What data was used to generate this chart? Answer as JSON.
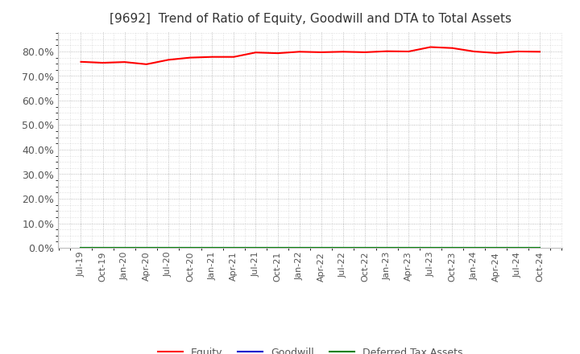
{
  "title": "[9692]  Trend of Ratio of Equity, Goodwill and DTA to Total Assets",
  "title_fontsize": 11,
  "ylim": [
    0,
    0.88
  ],
  "yticks": [
    0.0,
    0.1,
    0.2,
    0.3,
    0.4,
    0.5,
    0.6,
    0.7,
    0.8
  ],
  "ytick_labels": [
    "0.0%",
    "10.0%",
    "20.0%",
    "30.0%",
    "40.0%",
    "50.0%",
    "60.0%",
    "70.0%",
    "80.0%"
  ],
  "x_labels": [
    "Jul-19",
    "Oct-19",
    "Jan-20",
    "Apr-20",
    "Jul-20",
    "Oct-20",
    "Jan-21",
    "Apr-21",
    "Jul-21",
    "Oct-21",
    "Jan-22",
    "Apr-22",
    "Jul-22",
    "Oct-22",
    "Jan-23",
    "Apr-23",
    "Jul-23",
    "Oct-23",
    "Jan-24",
    "Apr-24",
    "Jul-24",
    "Oct-24"
  ],
  "equity": [
    0.758,
    0.754,
    0.757,
    0.748,
    0.766,
    0.775,
    0.778,
    0.778,
    0.796,
    0.793,
    0.799,
    0.797,
    0.799,
    0.797,
    0.801,
    0.8,
    0.818,
    0.814,
    0.8,
    0.794,
    0.8,
    0.799
  ],
  "goodwill": [
    0.0,
    0.0,
    0.0,
    0.0,
    0.0,
    0.0,
    0.0,
    0.0,
    0.0,
    0.0,
    0.0,
    0.0,
    0.0,
    0.0,
    0.0,
    0.0,
    0.0,
    0.0,
    0.0,
    0.0,
    0.0,
    0.0
  ],
  "dta": [
    0.0,
    0.0,
    0.0,
    0.0,
    0.0,
    0.0,
    0.0,
    0.0,
    0.0,
    0.0,
    0.0,
    0.0,
    0.0,
    0.0,
    0.0,
    0.0,
    0.0,
    0.0,
    0.0,
    0.0,
    0.0,
    0.0
  ],
  "equity_color": "#FF0000",
  "goodwill_color": "#0000CC",
  "dta_color": "#008000",
  "legend_labels": [
    "Equity",
    "Goodwill",
    "Deferred Tax Assets"
  ],
  "background_color": "#FFFFFF",
  "plot_bg_color": "#FFFFFF",
  "grid_color": "#AAAAAA",
  "title_color": "#333333",
  "tick_color": "#555555"
}
